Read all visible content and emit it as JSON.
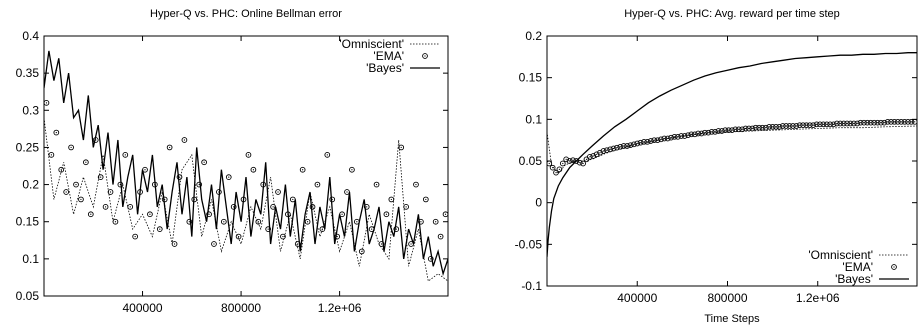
{
  "chart_data": [
    {
      "type": "line",
      "title": "Hyper-Q vs. PHC:  Online Bellman error",
      "xlabel": "",
      "ylabel": "",
      "xlim": [
        0,
        1640000
      ],
      "ylim": [
        0.05,
        0.4
      ],
      "xticks": [
        400000,
        800000,
        1200000
      ],
      "xtick_labels": [
        "400000",
        "800000",
        "1.2e+06"
      ],
      "yticks": [
        0.05,
        0.1,
        0.15,
        0.2,
        0.25,
        0.3,
        0.35,
        0.4
      ],
      "ytick_labels": [
        "0.05",
        "0.1",
        "0.15",
        "0.2",
        "0.25",
        "0.3",
        "0.35",
        "0.4"
      ],
      "legend_position": "top-right",
      "series": [
        {
          "name": "'Omniscient'",
          "style": "dotted",
          "x": [
            0,
            40000,
            80000,
            120000,
            160000,
            200000,
            240000,
            280000,
            320000,
            360000,
            400000,
            440000,
            480000,
            520000,
            560000,
            600000,
            640000,
            680000,
            720000,
            760000,
            800000,
            840000,
            880000,
            920000,
            960000,
            1000000,
            1040000,
            1080000,
            1120000,
            1160000,
            1200000,
            1240000,
            1280000,
            1320000,
            1360000,
            1400000,
            1440000,
            1480000,
            1520000,
            1560000,
            1600000,
            1640000
          ],
          "y": [
            0.29,
            0.18,
            0.23,
            0.16,
            0.21,
            0.17,
            0.24,
            0.15,
            0.2,
            0.14,
            0.16,
            0.13,
            0.19,
            0.12,
            0.22,
            0.24,
            0.13,
            0.18,
            0.11,
            0.15,
            0.12,
            0.17,
            0.14,
            0.21,
            0.11,
            0.16,
            0.1,
            0.19,
            0.13,
            0.17,
            0.11,
            0.15,
            0.09,
            0.16,
            0.12,
            0.1,
            0.26,
            0.09,
            0.14,
            0.07,
            0.08,
            0.07
          ]
        },
        {
          "name": "'EMA'",
          "style": "circle",
          "x": [
            10000,
            30000,
            50000,
            70000,
            90000,
            110000,
            130000,
            150000,
            170000,
            190000,
            210000,
            230000,
            250000,
            270000,
            290000,
            310000,
            330000,
            350000,
            370000,
            390000,
            410000,
            430000,
            450000,
            470000,
            490000,
            510000,
            530000,
            550000,
            570000,
            590000,
            610000,
            630000,
            650000,
            670000,
            690000,
            710000,
            730000,
            750000,
            770000,
            790000,
            810000,
            830000,
            850000,
            870000,
            890000,
            910000,
            930000,
            950000,
            970000,
            990000,
            1010000,
            1030000,
            1050000,
            1070000,
            1090000,
            1110000,
            1130000,
            1150000,
            1170000,
            1190000,
            1210000,
            1230000,
            1250000,
            1270000,
            1290000,
            1310000,
            1330000,
            1350000,
            1370000,
            1390000,
            1410000,
            1430000,
            1450000,
            1470000,
            1490000,
            1510000,
            1530000,
            1550000,
            1570000,
            1590000,
            1610000,
            1630000
          ],
          "y": [
            0.31,
            0.24,
            0.27,
            0.22,
            0.19,
            0.25,
            0.2,
            0.18,
            0.23,
            0.16,
            0.26,
            0.21,
            0.17,
            0.19,
            0.15,
            0.2,
            0.24,
            0.17,
            0.13,
            0.19,
            0.22,
            0.16,
            0.2,
            0.14,
            0.18,
            0.25,
            0.12,
            0.21,
            0.26,
            0.15,
            0.18,
            0.2,
            0.23,
            0.16,
            0.12,
            0.19,
            0.15,
            0.21,
            0.17,
            0.13,
            0.18,
            0.24,
            0.22,
            0.15,
            0.2,
            0.14,
            0.17,
            0.19,
            0.13,
            0.16,
            0.18,
            0.12,
            0.22,
            0.15,
            0.17,
            0.2,
            0.14,
            0.24,
            0.18,
            0.13,
            0.16,
            0.19,
            0.22,
            0.15,
            0.11,
            0.17,
            0.14,
            0.2,
            0.12,
            0.16,
            0.18,
            0.14,
            0.25,
            0.17,
            0.12,
            0.2,
            0.15,
            0.18,
            0.1,
            0.15,
            0.13,
            0.16
          ]
        },
        {
          "name": "'Bayes'",
          "style": "solid",
          "x": [
            0,
            20000,
            40000,
            60000,
            80000,
            100000,
            120000,
            140000,
            160000,
            180000,
            200000,
            220000,
            240000,
            260000,
            280000,
            300000,
            320000,
            340000,
            360000,
            380000,
            400000,
            420000,
            440000,
            460000,
            480000,
            500000,
            520000,
            540000,
            560000,
            580000,
            600000,
            620000,
            640000,
            660000,
            680000,
            700000,
            720000,
            740000,
            760000,
            780000,
            800000,
            820000,
            840000,
            860000,
            880000,
            900000,
            920000,
            940000,
            960000,
            980000,
            1000000,
            1020000,
            1040000,
            1060000,
            1080000,
            1100000,
            1120000,
            1140000,
            1160000,
            1180000,
            1200000,
            1220000,
            1240000,
            1260000,
            1280000,
            1300000,
            1320000,
            1340000,
            1360000,
            1380000,
            1400000,
            1420000,
            1440000,
            1460000,
            1480000,
            1500000,
            1520000,
            1540000,
            1560000,
            1580000,
            1600000,
            1620000,
            1640000
          ],
          "y": [
            0.33,
            0.38,
            0.34,
            0.37,
            0.31,
            0.35,
            0.29,
            0.3,
            0.26,
            0.32,
            0.25,
            0.28,
            0.22,
            0.27,
            0.2,
            0.26,
            0.17,
            0.21,
            0.24,
            0.16,
            0.22,
            0.19,
            0.24,
            0.17,
            0.2,
            0.14,
            0.19,
            0.23,
            0.16,
            0.21,
            0.13,
            0.25,
            0.18,
            0.15,
            0.2,
            0.14,
            0.22,
            0.17,
            0.12,
            0.19,
            0.15,
            0.21,
            0.13,
            0.18,
            0.16,
            0.23,
            0.12,
            0.17,
            0.14,
            0.2,
            0.13,
            0.18,
            0.11,
            0.16,
            0.19,
            0.12,
            0.17,
            0.14,
            0.21,
            0.12,
            0.16,
            0.13,
            0.19,
            0.11,
            0.15,
            0.18,
            0.12,
            0.14,
            0.17,
            0.11,
            0.15,
            0.13,
            0.17,
            0.1,
            0.14,
            0.12,
            0.16,
            0.1,
            0.13,
            0.09,
            0.11,
            0.08,
            0.1
          ]
        }
      ]
    },
    {
      "type": "line",
      "title": "Hyper-Q vs. PHC: Avg. reward per time step",
      "xlabel": "Time Steps",
      "ylabel": "",
      "xlim": [
        0,
        1640000
      ],
      "ylim": [
        -0.1,
        0.2
      ],
      "xticks": [
        400000,
        800000,
        1200000
      ],
      "xtick_labels": [
        "400000",
        "800000",
        "1.2e+06"
      ],
      "yticks": [
        -0.1,
        -0.05,
        0,
        0.05,
        0.1,
        0.15,
        0.2
      ],
      "ytick_labels": [
        "-0.1",
        "-0.05",
        "0",
        "0.05",
        "0.1",
        "0.15",
        "0.2"
      ],
      "legend_position": "bottom-right",
      "series": [
        {
          "name": "'Omniscient'",
          "style": "dotted",
          "x": [
            0,
            20000,
            50000,
            80000,
            120000,
            160000,
            200000,
            250000,
            300000,
            400000,
            500000,
            600000,
            700000,
            800000,
            900000,
            1000000,
            1100000,
            1200000,
            1300000,
            1400000,
            1500000,
            1640000
          ],
          "y": [
            0.085,
            0.045,
            0.035,
            0.045,
            0.05,
            0.05,
            0.052,
            0.058,
            0.063,
            0.07,
            0.075,
            0.08,
            0.083,
            0.085,
            0.086,
            0.087,
            0.088,
            0.089,
            0.09,
            0.09,
            0.091,
            0.092
          ]
        },
        {
          "name": "'EMA'",
          "style": "circle",
          "x": [
            10000,
            25000,
            40000,
            55000,
            70000,
            85000,
            100000,
            115000,
            130000,
            145000,
            160000,
            175000,
            190000,
            205000,
            220000,
            235000,
            250000,
            265000,
            280000,
            295000,
            310000,
            325000,
            340000,
            355000,
            370000,
            385000,
            400000,
            415000,
            430000,
            445000,
            460000,
            475000,
            490000,
            505000,
            520000,
            535000,
            550000,
            565000,
            580000,
            595000,
            610000,
            625000,
            640000,
            655000,
            670000,
            685000,
            700000,
            715000,
            730000,
            745000,
            760000,
            775000,
            790000,
            805000,
            820000,
            835000,
            850000,
            865000,
            880000,
            895000,
            910000,
            925000,
            940000,
            955000,
            970000,
            985000,
            1000000,
            1015000,
            1030000,
            1045000,
            1060000,
            1075000,
            1090000,
            1105000,
            1120000,
            1135000,
            1150000,
            1165000,
            1180000,
            1195000,
            1210000,
            1225000,
            1240000,
            1255000,
            1270000,
            1285000,
            1300000,
            1315000,
            1330000,
            1345000,
            1360000,
            1375000,
            1390000,
            1405000,
            1420000,
            1435000,
            1450000,
            1465000,
            1480000,
            1495000,
            1510000,
            1525000,
            1540000,
            1555000,
            1570000,
            1585000,
            1600000,
            1615000,
            1630000
          ],
          "y": [
            0.047,
            0.042,
            0.036,
            0.04,
            0.047,
            0.052,
            0.05,
            0.051,
            0.05,
            0.048,
            0.047,
            0.052,
            0.055,
            0.056,
            0.058,
            0.06,
            0.062,
            0.063,
            0.064,
            0.065,
            0.066,
            0.067,
            0.068,
            0.068,
            0.069,
            0.07,
            0.071,
            0.072,
            0.073,
            0.073,
            0.074,
            0.075,
            0.075,
            0.076,
            0.077,
            0.077,
            0.078,
            0.079,
            0.079,
            0.08,
            0.08,
            0.081,
            0.082,
            0.082,
            0.083,
            0.083,
            0.084,
            0.084,
            0.085,
            0.085,
            0.086,
            0.086,
            0.087,
            0.087,
            0.087,
            0.088,
            0.088,
            0.088,
            0.089,
            0.089,
            0.089,
            0.09,
            0.09,
            0.09,
            0.09,
            0.091,
            0.091,
            0.091,
            0.091,
            0.092,
            0.092,
            0.092,
            0.092,
            0.092,
            0.093,
            0.093,
            0.093,
            0.093,
            0.093,
            0.094,
            0.094,
            0.094,
            0.094,
            0.094,
            0.094,
            0.095,
            0.095,
            0.095,
            0.095,
            0.095,
            0.095,
            0.095,
            0.096,
            0.096,
            0.096,
            0.096,
            0.096,
            0.096,
            0.096,
            0.096,
            0.097,
            0.097,
            0.097,
            0.097,
            0.097,
            0.097,
            0.097,
            0.097,
            0.097
          ]
        },
        {
          "name": "'Bayes'",
          "style": "solid",
          "x": [
            0,
            5000,
            10000,
            20000,
            30000,
            50000,
            70000,
            100000,
            130000,
            160000,
            200000,
            250000,
            300000,
            350000,
            400000,
            450000,
            500000,
            550000,
            600000,
            650000,
            700000,
            750000,
            800000,
            850000,
            900000,
            950000,
            1000000,
            1050000,
            1100000,
            1150000,
            1200000,
            1250000,
            1300000,
            1350000,
            1400000,
            1450000,
            1500000,
            1550000,
            1600000,
            1640000
          ],
          "y": [
            -0.065,
            -0.045,
            -0.03,
            -0.01,
            0.005,
            0.02,
            0.03,
            0.042,
            0.05,
            0.058,
            0.068,
            0.08,
            0.091,
            0.1,
            0.11,
            0.12,
            0.128,
            0.135,
            0.141,
            0.147,
            0.152,
            0.156,
            0.159,
            0.162,
            0.164,
            0.167,
            0.169,
            0.171,
            0.173,
            0.174,
            0.175,
            0.176,
            0.177,
            0.177,
            0.178,
            0.178,
            0.179,
            0.179,
            0.18,
            0.18
          ]
        }
      ]
    }
  ]
}
